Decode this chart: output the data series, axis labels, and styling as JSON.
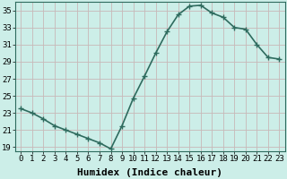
{
  "x": [
    0,
    1,
    2,
    3,
    4,
    5,
    6,
    7,
    8,
    9,
    10,
    11,
    12,
    13,
    14,
    15,
    16,
    17,
    18,
    19,
    20,
    21,
    22,
    23
  ],
  "y": [
    23.5,
    23.0,
    22.3,
    21.5,
    21.0,
    20.5,
    20.0,
    19.5,
    18.8,
    21.5,
    24.7,
    27.3,
    30.0,
    32.5,
    34.5,
    35.5,
    35.6,
    34.7,
    34.2,
    33.0,
    32.8,
    31.0,
    29.5,
    29.3
  ],
  "line_color": "#2e6b5e",
  "marker": "+",
  "marker_size": 4,
  "bg_color": "#cceee8",
  "grid_color": "#c8b8b8",
  "xlabel": "Humidex (Indice chaleur)",
  "xlim": [
    -0.5,
    23.5
  ],
  "ylim": [
    18.5,
    36.0
  ],
  "yticks": [
    19,
    21,
    23,
    25,
    27,
    29,
    31,
    33,
    35
  ],
  "xticks": [
    0,
    1,
    2,
    3,
    4,
    5,
    6,
    7,
    8,
    9,
    10,
    11,
    12,
    13,
    14,
    15,
    16,
    17,
    18,
    19,
    20,
    21,
    22,
    23
  ],
  "tick_fontsize": 6.5,
  "xlabel_fontsize": 8,
  "linewidth": 1.2,
  "marker_linewidth": 1.0
}
